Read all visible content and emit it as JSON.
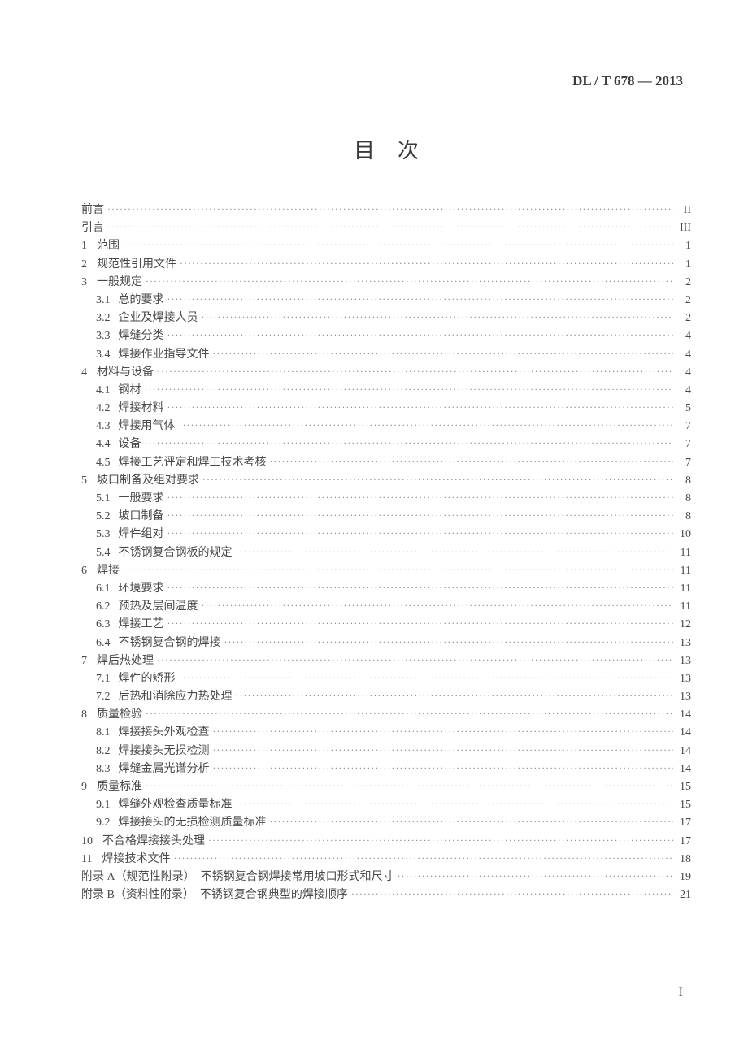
{
  "standard_code": "DL / T 678 — 2013",
  "title": "目次",
  "page_number": "I",
  "colors": {
    "background": "#ffffff",
    "text": "#4a4a4a",
    "dots": "#888888"
  },
  "typography": {
    "title_fontsize": 26,
    "header_fontsize": 17,
    "body_fontsize": 14,
    "font_family": "SimSun"
  },
  "entries": [
    {
      "level": 0,
      "num": "",
      "label": "前言",
      "page": "II"
    },
    {
      "level": 0,
      "num": "",
      "label": "引言",
      "page": "III"
    },
    {
      "level": 0,
      "num": "1",
      "label": "范围",
      "page": "1"
    },
    {
      "level": 0,
      "num": "2",
      "label": "规范性引用文件",
      "page": "1"
    },
    {
      "level": 0,
      "num": "3",
      "label": "一般规定",
      "page": "2"
    },
    {
      "level": 1,
      "num": "3.1",
      "label": "总的要求",
      "page": "2"
    },
    {
      "level": 1,
      "num": "3.2",
      "label": "企业及焊接人员",
      "page": "2"
    },
    {
      "level": 1,
      "num": "3.3",
      "label": "焊缝分类",
      "page": "4"
    },
    {
      "level": 1,
      "num": "3.4",
      "label": "焊接作业指导文件",
      "page": "4"
    },
    {
      "level": 0,
      "num": "4",
      "label": "材料与设备",
      "page": "4"
    },
    {
      "level": 1,
      "num": "4.1",
      "label": "钢材",
      "page": "4"
    },
    {
      "level": 1,
      "num": "4.2",
      "label": "焊接材料",
      "page": "5"
    },
    {
      "level": 1,
      "num": "4.3",
      "label": "焊接用气体",
      "page": "7"
    },
    {
      "level": 1,
      "num": "4.4",
      "label": "设备",
      "page": "7"
    },
    {
      "level": 1,
      "num": "4.5",
      "label": "焊接工艺评定和焊工技术考核",
      "page": "7"
    },
    {
      "level": 0,
      "num": "5",
      "label": "坡口制备及组对要求",
      "page": "8"
    },
    {
      "level": 1,
      "num": "5.1",
      "label": "一般要求",
      "page": "8"
    },
    {
      "level": 1,
      "num": "5.2",
      "label": "坡口制备",
      "page": "8"
    },
    {
      "level": 1,
      "num": "5.3",
      "label": "焊件组对",
      "page": "10"
    },
    {
      "level": 1,
      "num": "5.4",
      "label": "不锈钢复合钢板的规定",
      "page": "11"
    },
    {
      "level": 0,
      "num": "6",
      "label": "焊接",
      "page": "11"
    },
    {
      "level": 1,
      "num": "6.1",
      "label": "环境要求",
      "page": "11"
    },
    {
      "level": 1,
      "num": "6.2",
      "label": "预热及层间温度",
      "page": "11"
    },
    {
      "level": 1,
      "num": "6.3",
      "label": "焊接工艺",
      "page": "12"
    },
    {
      "level": 1,
      "num": "6.4",
      "label": "不锈钢复合钢的焊接",
      "page": "13"
    },
    {
      "level": 0,
      "num": "7",
      "label": "焊后热处理",
      "page": "13"
    },
    {
      "level": 1,
      "num": "7.1",
      "label": "焊件的矫形",
      "page": "13"
    },
    {
      "level": 1,
      "num": "7.2",
      "label": "后热和消除应力热处理",
      "page": "13"
    },
    {
      "level": 0,
      "num": "8",
      "label": "质量检验",
      "page": "14"
    },
    {
      "level": 1,
      "num": "8.1",
      "label": "焊接接头外观检查",
      "page": "14"
    },
    {
      "level": 1,
      "num": "8.2",
      "label": "焊接接头无损检测",
      "page": "14"
    },
    {
      "level": 1,
      "num": "8.3",
      "label": "焊缝金属光谱分析",
      "page": "14"
    },
    {
      "level": 0,
      "num": "9",
      "label": "质量标准",
      "page": "15"
    },
    {
      "level": 1,
      "num": "9.1",
      "label": "焊缝外观检查质量标准",
      "page": "15"
    },
    {
      "level": 1,
      "num": "9.2",
      "label": "焊接接头的无损检测质量标准",
      "page": "17"
    },
    {
      "level": 0,
      "num": "10",
      "label": "不合格焊接接头处理",
      "page": "17"
    },
    {
      "level": 0,
      "num": "11",
      "label": "焊接技术文件",
      "page": "18"
    },
    {
      "level": 0,
      "num": "",
      "label": "附录 A（规范性附录）　不锈钢复合钢焊接常用坡口形式和尺寸",
      "page": "19"
    },
    {
      "level": 0,
      "num": "",
      "label": "附录 B（资料性附录）　不锈钢复合钢典型的焊接顺序",
      "page": "21"
    }
  ]
}
